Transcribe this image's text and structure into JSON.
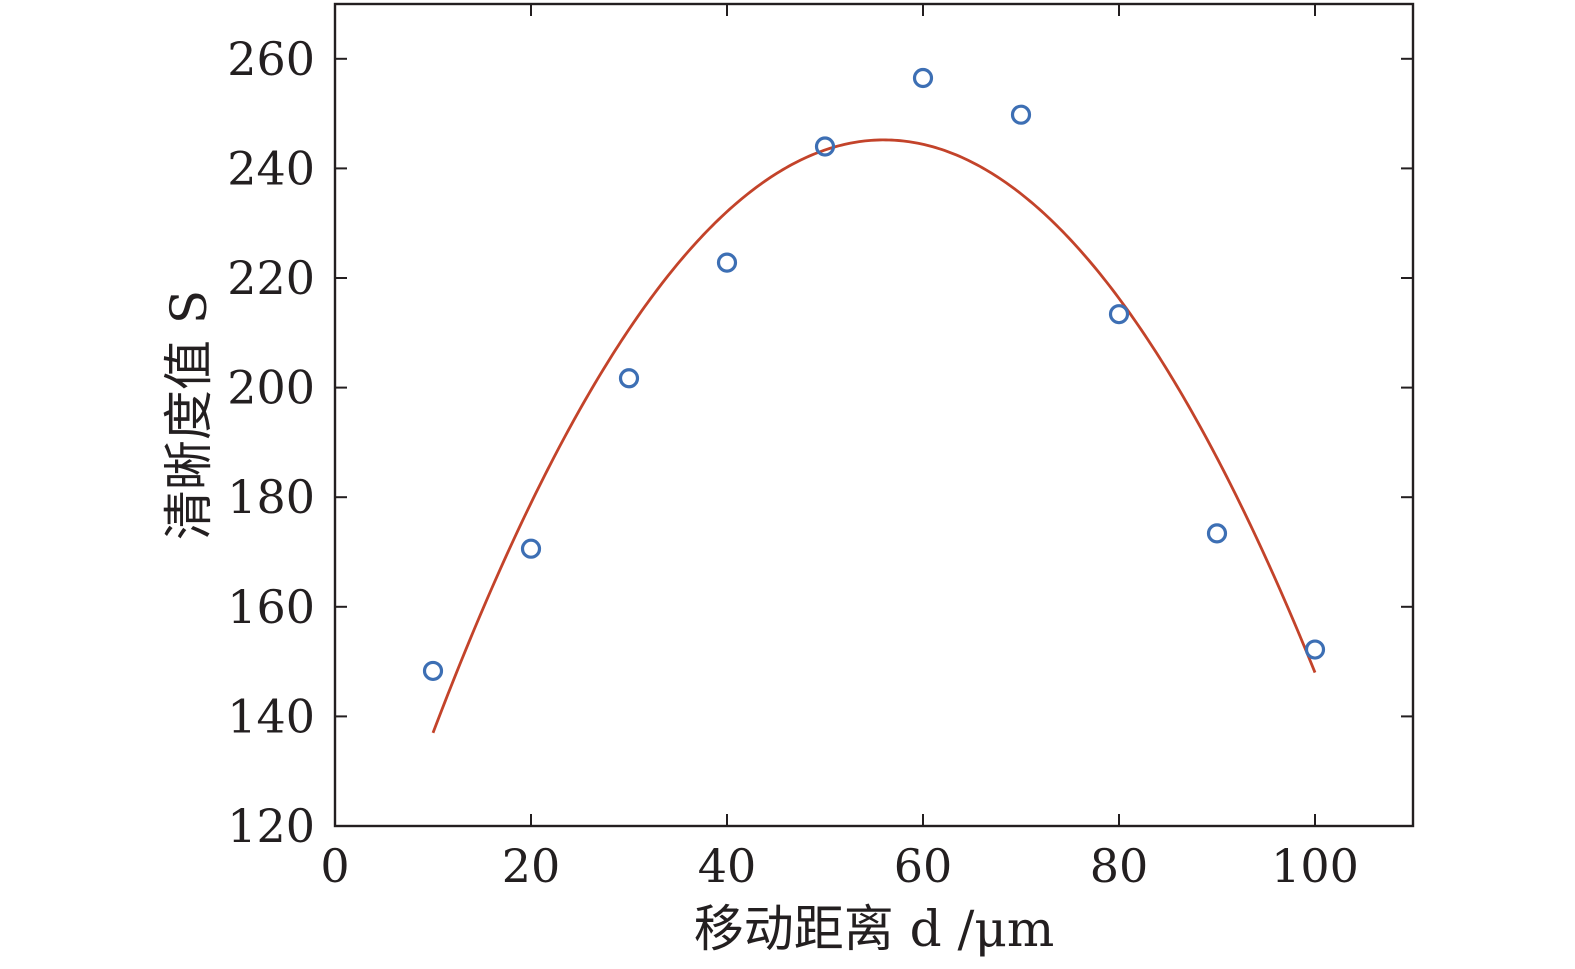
{
  "chart_data": {
    "type": "scatter",
    "title": "",
    "xlabel": "移动距离 d /μm",
    "ylabel": "清晰度值 S",
    "xlim": [
      0,
      110
    ],
    "ylim": [
      120,
      270
    ],
    "xticks": [
      0,
      20,
      40,
      60,
      80,
      100
    ],
    "yticks": [
      120,
      140,
      160,
      180,
      200,
      220,
      240,
      260
    ],
    "grid": false,
    "series": [
      {
        "kind": "scatter",
        "marker": "open-circle",
        "color": "#3d6fb4",
        "x": [
          10,
          20,
          30,
          40,
          50,
          60,
          70,
          80,
          90,
          100
        ],
        "y": [
          148.3,
          170.6,
          201.7,
          222.8,
          244.0,
          256.5,
          249.8,
          213.4,
          173.4,
          152.2
        ]
      },
      {
        "kind": "line",
        "fit": "quadratic",
        "color": "#c3432a",
        "x_range": [
          10,
          100
        ],
        "vertex": [
          56,
          245.2
        ],
        "endpoints": [
          [
            10,
            137
          ],
          [
            100,
            148
          ]
        ]
      }
    ]
  }
}
